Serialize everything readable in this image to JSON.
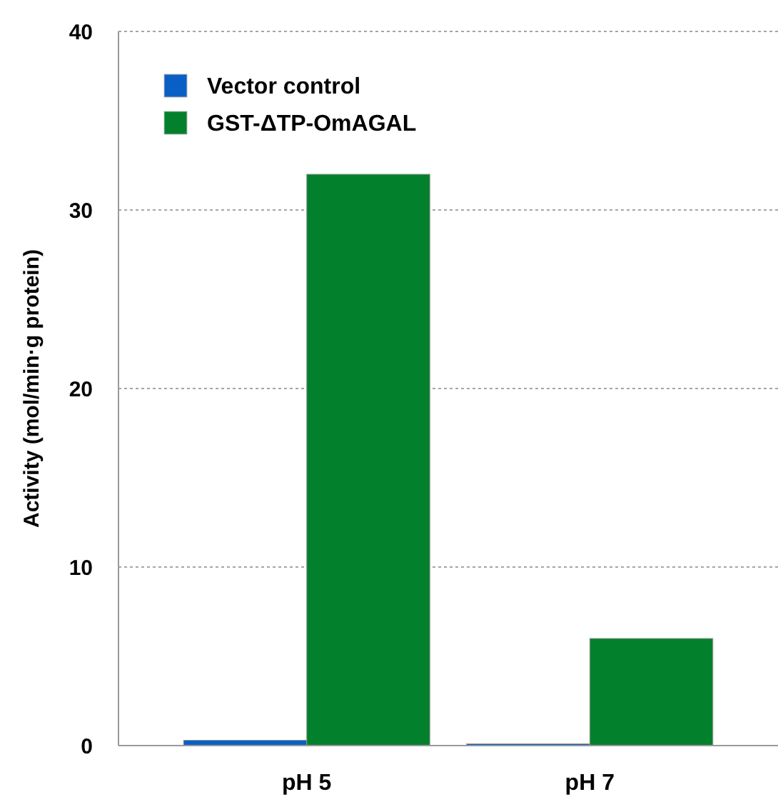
{
  "chart_data": {
    "type": "bar",
    "ylabel": "Activity (mol/min·g protein)",
    "categories": [
      "pH 5",
      "pH 7"
    ],
    "series": [
      {
        "name": "Vector control",
        "color": "#0a5fc7",
        "values": [
          0.3,
          0.1
        ]
      },
      {
        "name": "GST-ΔTP-OmAGAL",
        "color": "#03802c",
        "values": [
          32,
          6
        ]
      }
    ],
    "ylim": [
      0,
      40
    ],
    "yticks": [
      0,
      10,
      20,
      30,
      40
    ],
    "grid": "y",
    "legend": "top left"
  }
}
